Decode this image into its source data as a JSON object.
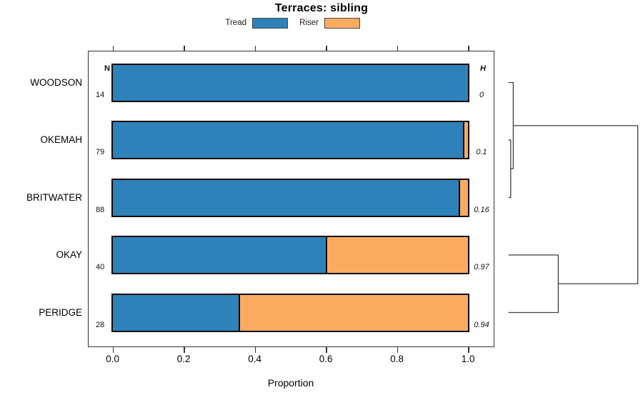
{
  "chart_data": {
    "type": "bar",
    "orientation": "horizontal",
    "stacked": true,
    "title": "Terraces: sibling",
    "xlabel": "Proportion",
    "xlim": [
      0,
      1
    ],
    "x_ticks": [
      "0.0",
      "0.2",
      "0.4",
      "0.6",
      "0.8",
      "1.0"
    ],
    "grid": false,
    "legend_position": "top",
    "categories": [
      "WOODSON",
      "OKEMAH",
      "BRITWATER",
      "OKAY",
      "PERIDGE"
    ],
    "series": [
      {
        "name": "Tread",
        "color": "#2E82BA",
        "values": [
          1.0,
          0.987,
          0.975,
          0.6,
          0.356
        ]
      },
      {
        "name": "Riser",
        "color": "#FBAB60",
        "values": [
          0.0,
          0.013,
          0.025,
          0.4,
          0.644
        ]
      }
    ],
    "n_column": {
      "header": "N",
      "values": [
        "14",
        "79",
        "88",
        "40",
        "28"
      ]
    },
    "h_column": {
      "header": "H",
      "values": [
        "0",
        "0.1",
        "0.16",
        "0.97",
        "0.94"
      ]
    },
    "dendrogram": {
      "note": "right-side cluster tree, height grows rightward",
      "merges": [
        {
          "a": "leaf:OKEMAH",
          "b": "leaf:BRITWATER",
          "height": 0.017
        },
        {
          "a": "leaf:WOODSON",
          "b": "merge:0",
          "height": 0.037
        },
        {
          "a": "leaf:OKAY",
          "b": "leaf:PERIDGE",
          "height": 0.385
        },
        {
          "a": "merge:1",
          "b": "merge:2",
          "height": 1.0
        }
      ]
    }
  }
}
